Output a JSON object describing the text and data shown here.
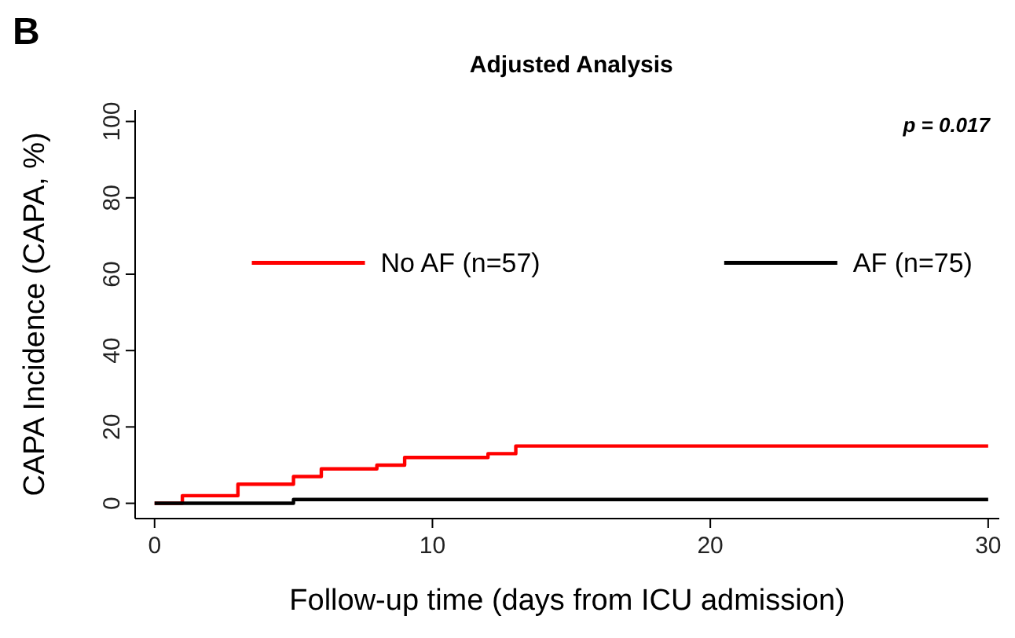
{
  "chart_data": {
    "type": "step",
    "title": "Adjusted Analysis",
    "xlabel": "Follow-up time (days from ICU admission)",
    "ylabel": "CAPA Incidence (CAPA, %)",
    "annotations": [
      "B",
      "p = 0.017"
    ],
    "xlim": [
      -0.7,
      30.4
    ],
    "xticks": [
      0,
      10,
      20,
      30
    ],
    "ylim": [
      -4,
      103
    ],
    "yticks": [
      0,
      20,
      40,
      60,
      80,
      100
    ],
    "grid": false,
    "legend": "top",
    "marker": "none",
    "line_style": "solid",
    "series": [
      {
        "name": "No AF (n=57)",
        "color": "#ff0000",
        "x": [
          0,
          1,
          3,
          5,
          6,
          8,
          9,
          12,
          13,
          30
        ],
        "values": [
          0,
          2,
          5,
          7,
          9,
          10,
          12,
          13,
          15,
          15
        ]
      },
      {
        "name": "AF (n=75)",
        "color": "#000000",
        "x": [
          0,
          5,
          30
        ],
        "values": [
          0,
          1,
          1
        ]
      }
    ]
  }
}
